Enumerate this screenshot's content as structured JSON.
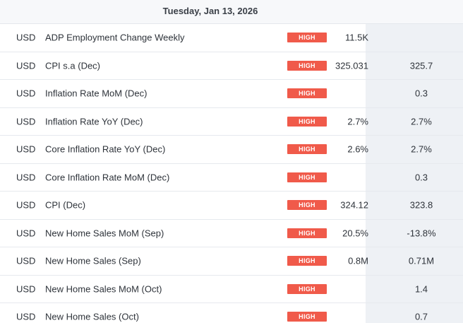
{
  "header": {
    "date": "Tuesday, Jan 13, 2026"
  },
  "events": [
    {
      "currency": "USD",
      "name": "ADP Employment Change Weekly",
      "impact": "HIGH",
      "actual": "11.5K",
      "previous": ""
    },
    {
      "currency": "USD",
      "name": "CPI s.a (Dec)",
      "impact": "HIGH",
      "actual": "325.031",
      "previous": "325.7"
    },
    {
      "currency": "USD",
      "name": "Inflation Rate MoM (Dec)",
      "impact": "HIGH",
      "actual": "",
      "previous": "0.3"
    },
    {
      "currency": "USD",
      "name": "Inflation Rate YoY (Dec)",
      "impact": "HIGH",
      "actual": "2.7%",
      "previous": "2.7%"
    },
    {
      "currency": "USD",
      "name": "Core Inflation Rate YoY (Dec)",
      "impact": "HIGH",
      "actual": "2.6%",
      "previous": "2.7%"
    },
    {
      "currency": "USD",
      "name": "Core Inflation Rate MoM (Dec)",
      "impact": "HIGH",
      "actual": "",
      "previous": "0.3"
    },
    {
      "currency": "USD",
      "name": "CPI (Dec)",
      "impact": "HIGH",
      "actual": "324.12",
      "previous": "323.8"
    },
    {
      "currency": "USD",
      "name": "New Home Sales MoM (Sep)",
      "impact": "HIGH",
      "actual": "20.5%",
      "previous": "-13.8%"
    },
    {
      "currency": "USD",
      "name": "New Home Sales (Sep)",
      "impact": "HIGH",
      "actual": "0.8M",
      "previous": "0.71M"
    },
    {
      "currency": "USD",
      "name": "New Home Sales MoM (Oct)",
      "impact": "HIGH",
      "actual": "",
      "previous": "1.4"
    },
    {
      "currency": "USD",
      "name": "New Home Sales (Oct)",
      "impact": "HIGH",
      "actual": "",
      "previous": "0.7"
    }
  ],
  "colors": {
    "impact_high": "#f05a4a",
    "previous_column_bg": "#eef1f5"
  }
}
